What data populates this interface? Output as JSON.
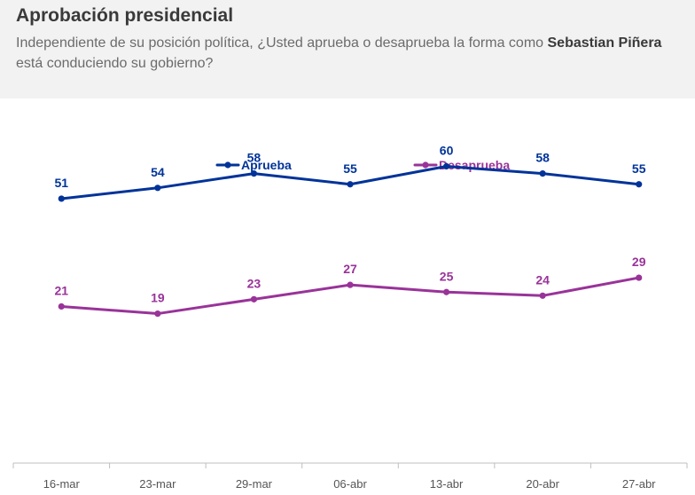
{
  "header": {
    "title": "Aprobación presidencial",
    "subtitle_before": "Independiente de su posición política, ¿Usted aprueba o desaprueba la forma como ",
    "subtitle_name": "Sebastian Piñera",
    "subtitle_after": " está conduciendo su gobierno?"
  },
  "chart_data": {
    "type": "line",
    "title": "Aprobación presidencial",
    "xlabel": "",
    "ylabel": "",
    "ylim": [
      0,
      70
    ],
    "grid": false,
    "legend_position": "top-center",
    "categories": [
      "16-mar",
      "23-mar",
      "29-mar",
      "06-abr",
      "13-abr",
      "20-abr",
      "27-abr"
    ],
    "series": [
      {
        "name": "Aprueba",
        "color": "#003399",
        "values": [
          51,
          54,
          58,
          55,
          60,
          58,
          55
        ]
      },
      {
        "name": "Desaprueba",
        "color": "#993399",
        "values": [
          21,
          19,
          23,
          27,
          25,
          24,
          29
        ]
      }
    ]
  }
}
